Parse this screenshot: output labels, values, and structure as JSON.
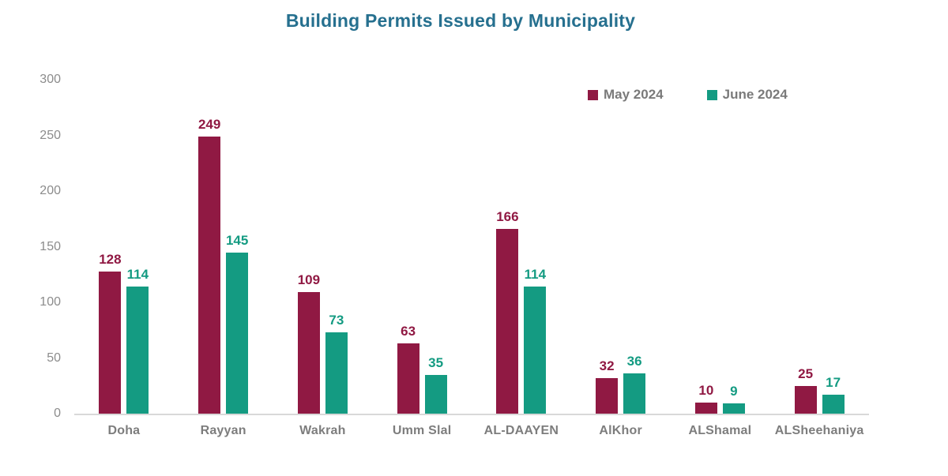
{
  "title": "Building Permits Issued by Municipality",
  "colors": {
    "title": "#26708F",
    "may": "#901943",
    "june": "#149B82",
    "axis_text": "#8C8C8C",
    "category_text": "#7D7D7D",
    "legend_text": "#7A7A7A",
    "axis_line": "#D9D9D9",
    "background": "#FFFFFF"
  },
  "legend": {
    "items": [
      {
        "label": "May 2024",
        "color": "#901943"
      },
      {
        "label": "June 2024",
        "color": "#149B82"
      }
    ],
    "position": "top-right"
  },
  "chart_data": {
    "type": "bar",
    "title": "Building Permits Issued by Municipality",
    "categories": [
      "Doha",
      "Rayyan",
      "Wakrah",
      "Umm Slal",
      "AL-DAAYEN",
      "AlKhor",
      "ALShamal",
      "ALSheehaniya"
    ],
    "series": [
      {
        "name": "May 2024",
        "color": "#901943",
        "values": [
          128,
          249,
          109,
          63,
          166,
          32,
          10,
          25
        ]
      },
      {
        "name": "June 2024",
        "color": "#149B82",
        "values": [
          114,
          145,
          73,
          35,
          114,
          36,
          9,
          17
        ]
      }
    ],
    "xlabel": "",
    "ylabel": "",
    "ylim": [
      0,
      300
    ],
    "yticks": [
      0,
      50,
      100,
      150,
      200,
      250,
      300
    ],
    "grid": false,
    "data_labels": true,
    "legend_position": "top-right"
  }
}
